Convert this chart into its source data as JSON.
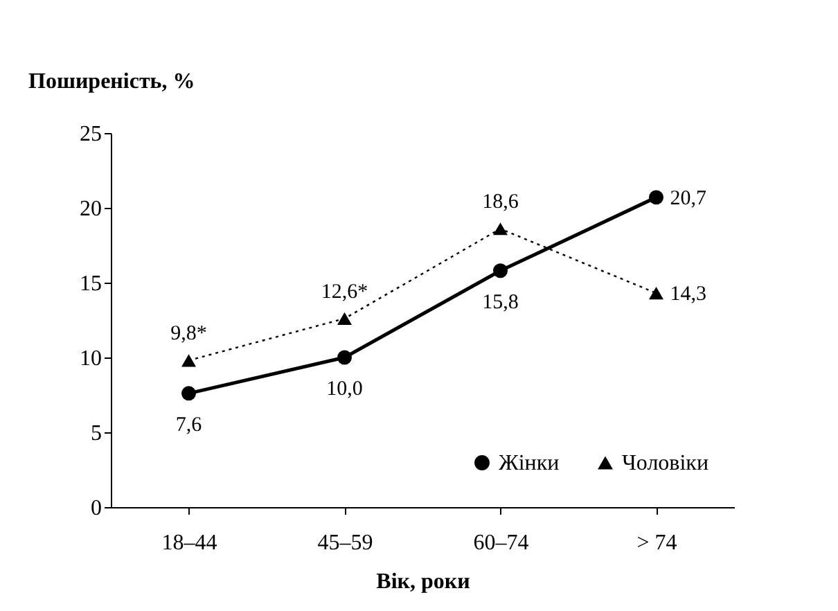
{
  "chart_data": {
    "type": "line",
    "xlabel": "Вік, роки",
    "ylabel": "Поширеність, %",
    "categories": [
      "18–44",
      "45–59",
      "60–74",
      "> 74"
    ],
    "ylim": [
      0,
      25
    ],
    "yticks": [
      0,
      5,
      10,
      15,
      20,
      25
    ],
    "grid": false,
    "legend": "bottom right",
    "series": [
      {
        "name": "Жінки",
        "color": "#000000",
        "marker": "circle",
        "line_style": "solid",
        "values": [
          7.6,
          10.0,
          15.8,
          20.7
        ],
        "value_labels": [
          "7,6",
          "10,0",
          "15,8",
          "20,7"
        ]
      },
      {
        "name": "Чоловіки",
        "color": "#000000",
        "marker": "triangle",
        "line_style": "dotted",
        "values": [
          9.8,
          12.6,
          18.6,
          14.3
        ],
        "value_labels": [
          "9,8*",
          "12,6*",
          "18,6",
          "14,3"
        ]
      }
    ]
  }
}
